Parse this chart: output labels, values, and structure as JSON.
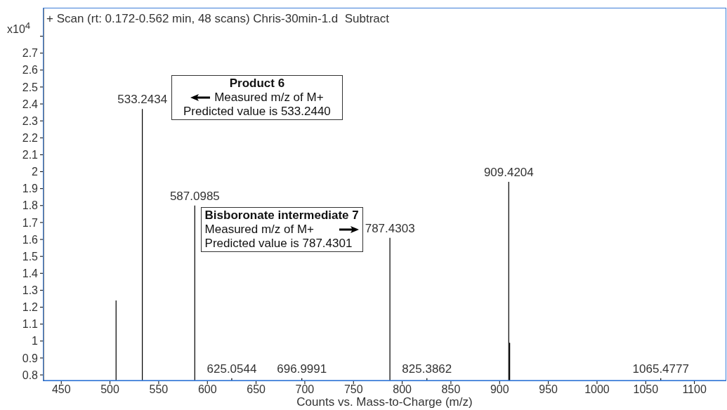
{
  "chart_data": {
    "type": "bar",
    "title": "+ Scan (rt: 0.172-0.562 min, 48 scans) Chris-30min-1.d  Subtract",
    "xlabel": "Counts vs. Mass-to-Charge (m/z)",
    "ylabel": "x10$^{4}$",
    "x": [
      506.3,
      533.2434,
      587.0985,
      625.0544,
      696.9991,
      787.4303,
      825.3862,
      909.4204,
      910.4,
      1065.4777
    ],
    "values": [
      1.24,
      2.37,
      1.8,
      0.78,
      0.78,
      1.61,
      0.78,
      1.94,
      0.99,
      0.78
    ],
    "color": "#000000",
    "xlim": [
      431.8,
      1132
    ],
    "xticks": [
      450,
      500,
      550,
      600,
      650,
      700,
      750,
      800,
      850,
      900,
      950,
      1000,
      1050,
      1100
    ],
    "ylim": [
      0.767,
      2.964
    ],
    "yticks": [
      0.8,
      0.9,
      1,
      1.1,
      1.2,
      1.3,
      1.4,
      1.5,
      1.6,
      1.7,
      1.8,
      1.9,
      2,
      2.1,
      2.2,
      2.3,
      2.4,
      2.5,
      2.6,
      2.7,
      {
        "value": 2.8,
        "label": null
      }
    ],
    "annotations": [
      "Product 6\nMeasured m/z of M+\nPredicted value is 533.2440",
      "Bisboronate intermediate 7\nMeasured m/z of M+\nPredicted value is 787.4301",
      {
        "text": "533.2434",
        "x": 533.2434,
        "y": 2.37
      },
      {
        "text": "587.0985",
        "x": 587.0985,
        "y": 1.8
      },
      {
        "text": "625.0544",
        "x": 625.0544,
        "y": 0.78
      },
      {
        "text": "696.9991",
        "x": 696.9991,
        "y": 0.78
      },
      {
        "text": "787.4303",
        "x": 787.4303,
        "y": 1.61
      },
      {
        "text": "825.3862",
        "x": 825.3862,
        "y": 0.78
      },
      {
        "text": "909.4204",
        "x": 909.4204,
        "y": 1.94
      },
      {
        "text": "1065.4777",
        "x": 1065.4777,
        "y": 0.78
      }
    ]
  }
}
